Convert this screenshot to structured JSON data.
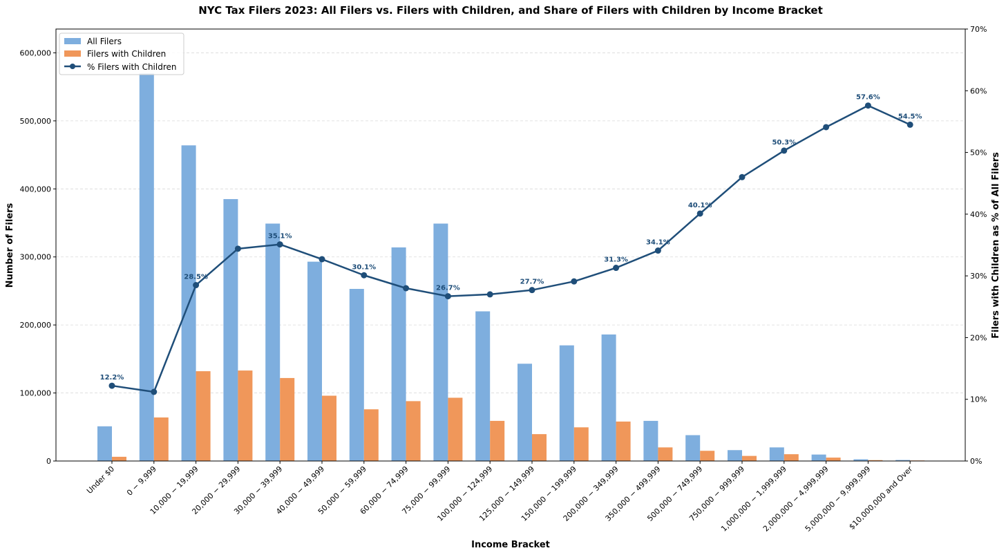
{
  "chart_data": {
    "type": "bar",
    "title": "NYC Tax Filers 2023: All Filers vs. Filers with Children, and Share of Filers with Children by Income Bracket",
    "xlabel": "Income Bracket",
    "ylabel": "Number of Filers",
    "y2label": "Filers with Children as % of All Filers",
    "ylim": [
      0,
      635000
    ],
    "y2lim": [
      0,
      70
    ],
    "yticks": [
      0,
      100000,
      200000,
      300000,
      400000,
      500000,
      600000
    ],
    "ytick_labels": [
      "0",
      "100,000",
      "200,000",
      "300,000",
      "400,000",
      "500,000",
      "600,000"
    ],
    "y2ticks": [
      0,
      10,
      20,
      30,
      40,
      50,
      60,
      70
    ],
    "y2tick_labels": [
      "0%",
      "10%",
      "20%",
      "30%",
      "40%",
      "50%",
      "60%",
      "70%"
    ],
    "grid": "horizontal dashed",
    "legend_position": "top-left",
    "categories": [
      "Under $0",
      "$0 - $9,999",
      "$10,000 - $19,999",
      "$20,000 - $29,999",
      "$30,000 - $39,999",
      "$40,000 - $49,999",
      "$50,000 - $59,999",
      "$60,000 - $74,999",
      "$75,000 - $99,999",
      "$100,000 - $124,999",
      "$125,000 - $149,999",
      "$150,000 - $199,999",
      "$200,000 - $349,999",
      "$350,000 - $499,999",
      "$500,000 - $749,999",
      "$750,000 - $999,999",
      "$1,000,000 - $1,999,999",
      "$2,000,000 - $4,999,999",
      "$5,000,000 - $9,999,999",
      "$10,000,000 and Over"
    ],
    "category_labels": [
      "Under $0",
      "0 − 9,999",
      "10,000 − 19,999",
      "20,000 − 29,999",
      "30,000 − 39,999",
      "40,000 − 49,999",
      "50,000 − 59,999",
      "60,000 − 74,999",
      "75,000 − 99,999",
      "100,000 − 124,999",
      "125,000 − 149,999",
      "150,000 − 199,999",
      "200,000 − 349,999",
      "350,000 − 499,999",
      "500,000 − 749,999",
      "750,000 − 999,999",
      "1,000,000 − 1,999,999",
      "2,000,000 − 4,999,999",
      "5,000,000 − 9,999,999",
      "$10,000,000 and Over"
    ],
    "series": [
      {
        "name": "All Filers",
        "type": "bar",
        "axis": "left",
        "color": "#7eaede",
        "values": [
          51000,
          570000,
          464000,
          385000,
          349000,
          293000,
          253000,
          314000,
          349000,
          220000,
          143000,
          170000,
          186000,
          59000,
          38000,
          16000,
          20000,
          9500,
          2500,
          1500
        ]
      },
      {
        "name": "Filers with Children",
        "type": "bar",
        "axis": "left",
        "color": "#f0975a",
        "values": [
          6200,
          64000,
          132000,
          133000,
          122000,
          96000,
          76000,
          88000,
          93000,
          59000,
          39500,
          49500,
          58000,
          20000,
          15000,
          7500,
          10000,
          5000,
          1300,
          800
        ]
      },
      {
        "name": "% Filers with Children",
        "type": "line",
        "axis": "right",
        "color": "#1f4e79",
        "values": [
          12.2,
          11.2,
          28.5,
          34.4,
          35.1,
          32.7,
          30.1,
          28.0,
          26.7,
          27.0,
          27.7,
          29.1,
          31.3,
          34.1,
          40.1,
          46.0,
          50.3,
          54.1,
          57.6,
          54.5
        ]
      }
    ],
    "point_labels": [
      {
        "index": 0,
        "text": "12.2%"
      },
      {
        "index": 2,
        "text": "28.5%"
      },
      {
        "index": 4,
        "text": "35.1%"
      },
      {
        "index": 6,
        "text": "30.1%"
      },
      {
        "index": 8,
        "text": "26.7%"
      },
      {
        "index": 10,
        "text": "27.7%"
      },
      {
        "index": 12,
        "text": "31.3%"
      },
      {
        "index": 13,
        "text": "34.1%"
      },
      {
        "index": 14,
        "text": "40.1%"
      },
      {
        "index": 16,
        "text": "50.3%"
      },
      {
        "index": 18,
        "text": "57.6%"
      },
      {
        "index": 19,
        "text": "54.5%"
      }
    ],
    "legend": [
      "All Filers",
      "Filers with Children",
      "% Filers with Children"
    ]
  }
}
